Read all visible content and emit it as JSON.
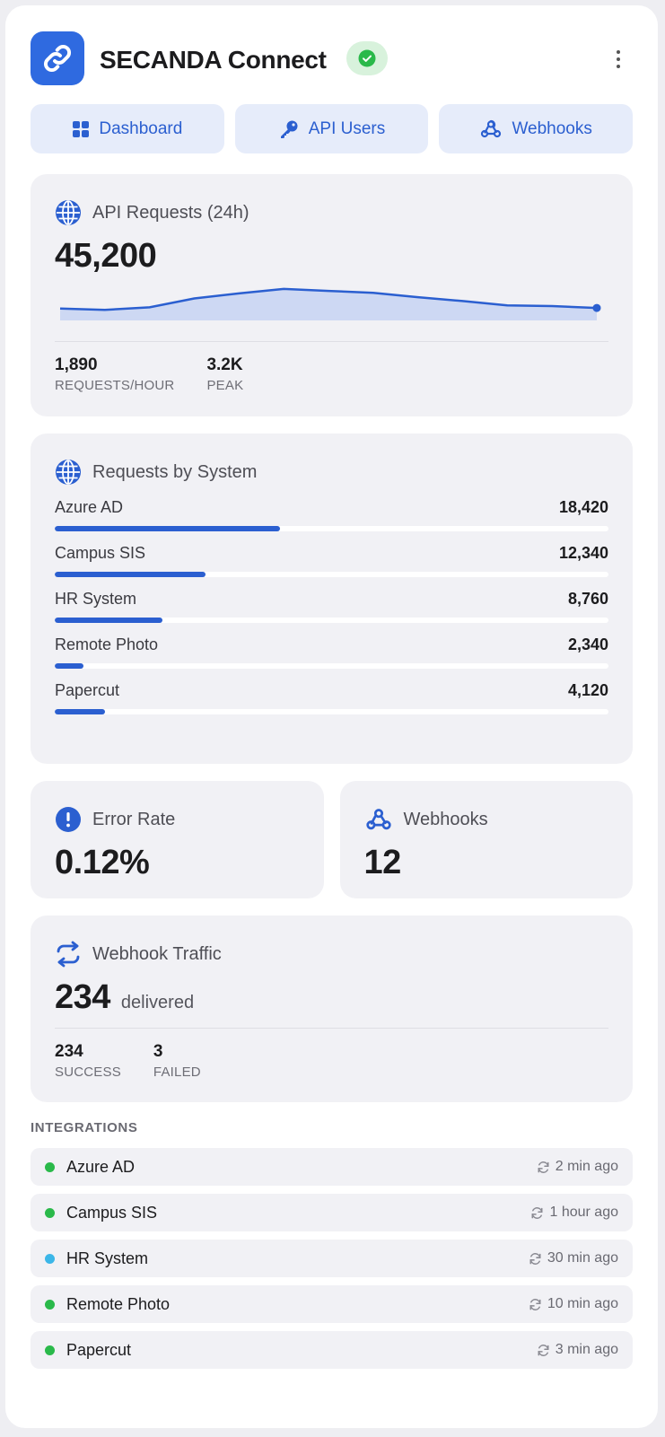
{
  "app": {
    "title": "SECANDA Connect"
  },
  "colors": {
    "accent": "#2b5fd0",
    "healthy": "#2ab94a",
    "syncing": "#3bb6e8"
  },
  "nav": [
    {
      "label": "Dashboard",
      "icon": "grid-icon"
    },
    {
      "label": "API Users",
      "icon": "key-icon"
    },
    {
      "label": "Webhooks",
      "icon": "webhook-icon"
    }
  ],
  "api_requests": {
    "title": "API Requests (24h)",
    "total": "45,200",
    "stats": [
      {
        "value": "1,890",
        "label": "REQUESTS/HOUR"
      },
      {
        "value": "3.2K",
        "label": "PEAK"
      }
    ],
    "chart_data": {
      "type": "area",
      "values": [
        1500,
        1400,
        1600,
        2300,
        2700,
        3050,
        2900,
        2750,
        2400,
        2100,
        1750,
        1700,
        1550
      ]
    }
  },
  "requests_by_system": {
    "title": "Requests by System",
    "max": 45200,
    "items": [
      {
        "name": "Azure AD",
        "value": "18,420",
        "raw": 18420
      },
      {
        "name": "Campus SIS",
        "value": "12,340",
        "raw": 12340
      },
      {
        "name": "HR System",
        "value": "8,760",
        "raw": 8760
      },
      {
        "name": "Remote Photo",
        "value": "2,340",
        "raw": 2340
      },
      {
        "name": "Papercut",
        "value": "4,120",
        "raw": 4120
      }
    ]
  },
  "error_rate": {
    "title": "Error Rate",
    "value": "0.12%"
  },
  "webhooks": {
    "title": "Webhooks",
    "value": "12"
  },
  "webhook_traffic": {
    "title": "Webhook Traffic",
    "value": "234",
    "unit": "delivered",
    "stats": [
      {
        "value": "234",
        "label": "SUCCESS"
      },
      {
        "value": "3",
        "label": "FAILED"
      }
    ]
  },
  "integrations": {
    "label": "INTEGRATIONS",
    "items": [
      {
        "name": "Azure AD",
        "time": "2 min ago",
        "status": "healthy"
      },
      {
        "name": "Campus SIS",
        "time": "1 hour ago",
        "status": "healthy"
      },
      {
        "name": "HR System",
        "time": "30 min ago",
        "status": "syncing"
      },
      {
        "name": "Remote Photo",
        "time": "10 min ago",
        "status": "healthy"
      },
      {
        "name": "Papercut",
        "time": "3 min ago",
        "status": "healthy"
      }
    ]
  }
}
